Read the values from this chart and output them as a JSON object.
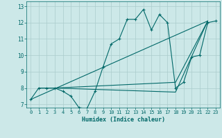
{
  "bg_color": "#cce8e8",
  "grid_color": "#aacccc",
  "line_color": "#006868",
  "xlabel": "Humidex (Indice chaleur)",
  "xlim": [
    -0.5,
    23.5
  ],
  "ylim": [
    6.8,
    13.3
  ],
  "yticks": [
    7,
    8,
    9,
    10,
    11,
    12,
    13
  ],
  "xticks": [
    0,
    1,
    2,
    3,
    4,
    5,
    6,
    7,
    8,
    9,
    10,
    11,
    12,
    13,
    14,
    15,
    16,
    17,
    18,
    19,
    20,
    21,
    22,
    23
  ],
  "line1_x": [
    0,
    1,
    2,
    3,
    4,
    5,
    6,
    7,
    8,
    9,
    10,
    11,
    12,
    13,
    14,
    15,
    16,
    17,
    18,
    19,
    20,
    21,
    22,
    23
  ],
  "line1_y": [
    7.3,
    8.0,
    8.0,
    8.0,
    7.8,
    7.5,
    6.8,
    6.75,
    7.8,
    9.3,
    10.7,
    11.0,
    12.2,
    12.2,
    12.8,
    11.55,
    12.5,
    12.0,
    8.0,
    8.35,
    9.9,
    10.0,
    12.0,
    12.1
  ],
  "line2_x": [
    1,
    3,
    18,
    22
  ],
  "line2_y": [
    8.0,
    8.0,
    8.35,
    12.1
  ],
  "line3_x": [
    1,
    3,
    18,
    22
  ],
  "line3_y": [
    8.0,
    8.0,
    7.75,
    12.1
  ],
  "line4_x": [
    0,
    22
  ],
  "line4_y": [
    7.3,
    12.1
  ]
}
